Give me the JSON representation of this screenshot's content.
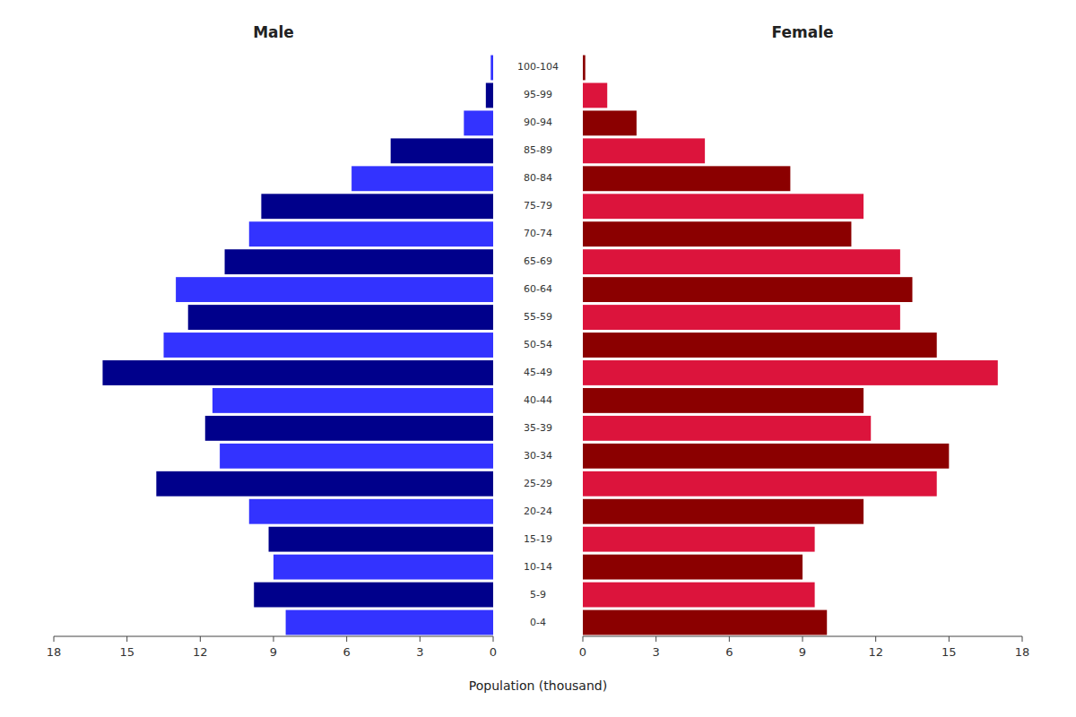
{
  "chart_data": {
    "type": "bar",
    "orientation": "horizontal",
    "categories": [
      "0-4",
      "5-9",
      "10-14",
      "15-19",
      "20-24",
      "25-29",
      "30-34",
      "35-39",
      "40-44",
      "45-49",
      "50-54",
      "55-59",
      "60-64",
      "65-69",
      "70-74",
      "75-79",
      "80-84",
      "85-89",
      "90-94",
      "95-99",
      "100-104"
    ],
    "series": [
      {
        "name": "Male",
        "values": [
          8.5,
          9.8,
          9.0,
          9.2,
          10.0,
          13.8,
          11.2,
          11.8,
          11.5,
          16.0,
          13.5,
          12.5,
          13.0,
          11.0,
          10.0,
          9.5,
          5.8,
          4.2,
          1.2,
          0.3,
          0.1
        ],
        "colors": [
          "#3333FF",
          "#00008B",
          "#3333FF",
          "#00008B",
          "#3333FF",
          "#00008B",
          "#3333FF",
          "#00008B",
          "#3333FF",
          "#00008B",
          "#3333FF",
          "#00008B",
          "#3333FF",
          "#00008B",
          "#3333FF",
          "#00008B",
          "#3333FF",
          "#00008B",
          "#3333FF",
          "#00008B",
          "#3333FF"
        ]
      },
      {
        "name": "Female",
        "values": [
          10.0,
          9.5,
          9.0,
          9.5,
          11.5,
          14.5,
          15.0,
          11.8,
          11.5,
          17.0,
          14.5,
          13.0,
          13.5,
          13.0,
          11.0,
          11.5,
          8.5,
          5.0,
          2.2,
          1.0,
          0.1
        ],
        "colors": [
          "#8B0000",
          "#DC143C",
          "#8B0000",
          "#DC143C",
          "#8B0000",
          "#DC143C",
          "#8B0000",
          "#DC143C",
          "#8B0000",
          "#DC143C",
          "#8B0000",
          "#DC143C",
          "#8B0000",
          "#DC143C",
          "#8B0000",
          "#DC143C",
          "#8B0000",
          "#DC143C",
          "#8B0000",
          "#DC143C",
          "#8B0000"
        ]
      }
    ],
    "xlabel": "Population (thousand)",
    "xlim": [
      0,
      18
    ],
    "xticks": [
      0,
      3,
      6,
      9,
      12,
      15,
      18
    ]
  }
}
